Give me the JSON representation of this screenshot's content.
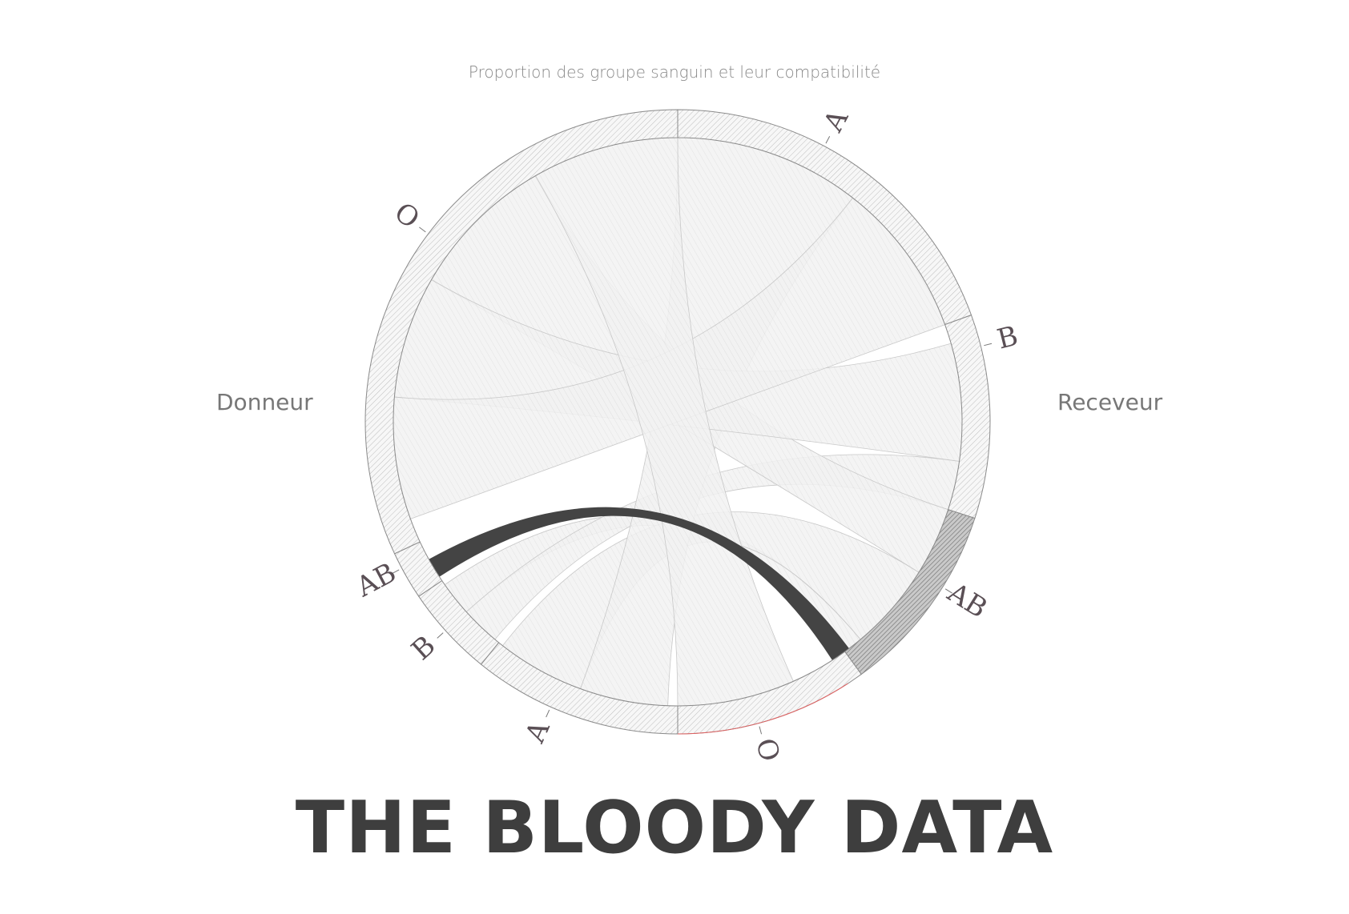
{
  "subtitle": "Proportion des groupe sanguin et leur compatibilité",
  "labels": {
    "donor": "Donneur",
    "receiver": "Receveur"
  },
  "title": "THE BLOODY DATA",
  "chart_data": {
    "type": "chord",
    "title": "Proportion des groupe sanguin et leur compatibilité",
    "groups": [
      {
        "key": "rec-A",
        "label": "A",
        "side": "Receveur"
      },
      {
        "key": "rec-B",
        "label": "B",
        "side": "Receveur"
      },
      {
        "key": "rec-AB",
        "label": "AB",
        "side": "Receveur"
      },
      {
        "key": "rec-O",
        "label": "O",
        "side": "Receveur"
      },
      {
        "key": "don-A",
        "label": "A",
        "side": "Donneur"
      },
      {
        "key": "don-B",
        "label": "B",
        "side": "Donneur"
      },
      {
        "key": "don-AB",
        "label": "AB",
        "side": "Donneur"
      },
      {
        "key": "don-O",
        "label": "O",
        "side": "Donneur"
      }
    ],
    "links": [
      {
        "source": "don-O",
        "target": "rec-O"
      },
      {
        "source": "don-O",
        "target": "rec-A"
      },
      {
        "source": "don-O",
        "target": "rec-B"
      },
      {
        "source": "don-O",
        "target": "rec-AB"
      },
      {
        "source": "don-A",
        "target": "rec-A"
      },
      {
        "source": "don-A",
        "target": "rec-AB"
      },
      {
        "source": "don-B",
        "target": "rec-B"
      },
      {
        "source": "don-B",
        "target": "rec-AB"
      },
      {
        "source": "don-AB",
        "target": "rec-AB",
        "highlighted": true
      }
    ],
    "colors": {
      "ring_stroke": "#8a8a8a",
      "ribbon_fill": "#efefef",
      "ribbon_stroke": "#c8c8c8",
      "highlight": "#444444",
      "highlight_arc": "#8c8c8c",
      "accent_arc": "#e06060",
      "label": "#5a4f55"
    }
  }
}
